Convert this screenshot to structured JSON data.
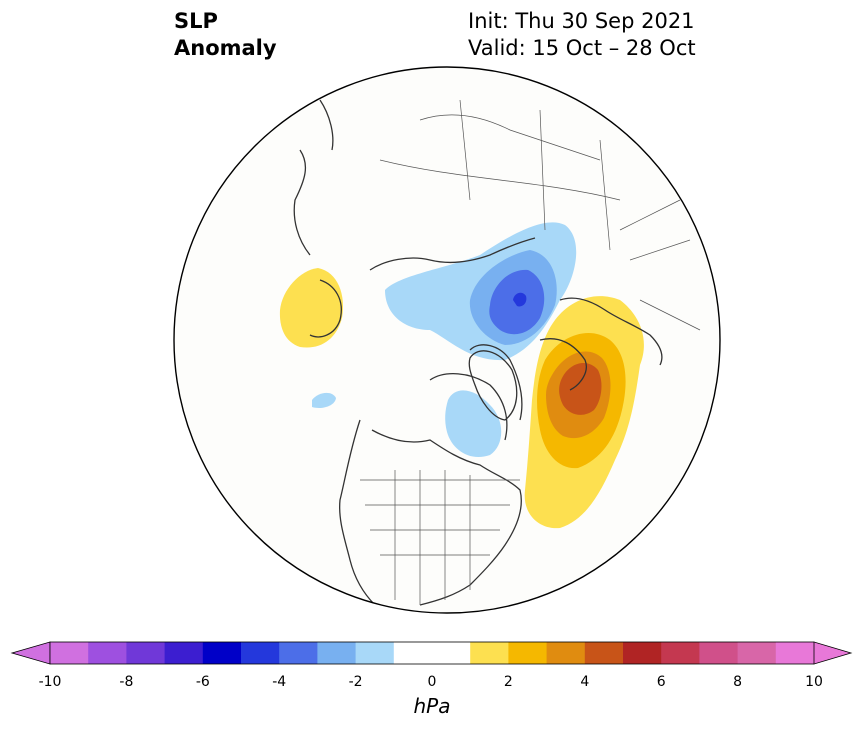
{
  "header": {
    "title_line1": "SLP",
    "title_line2": "Anomaly",
    "init_text": "Init: Thu 30 Sep 2021",
    "valid_text": "Valid: 15 Oct – 28 Oct"
  },
  "colorbar": {
    "units": "hPa",
    "ticks": [
      "-10",
      "-8",
      "-6",
      "-4",
      "-2",
      "0",
      "2",
      "4",
      "6",
      "8",
      "10"
    ],
    "colors": [
      "#d070e0",
      "#9e50e0",
      "#7038d8",
      "#3c1ed0",
      "#0000c8",
      "#2438dc",
      "#4c6ee8",
      "#78b0f0",
      "#a8d8f8",
      "#ffffff",
      "#ffffff",
      "#fde050",
      "#f5b800",
      "#e08c10",
      "#c85418",
      "#b02424",
      "#c43850",
      "#d0508a",
      "#d866a8",
      "#e878d8"
    ],
    "arrow_left_color": "#d070e0",
    "arrow_right_color": "#e878d8"
  },
  "map": {
    "projection": "north-polar-stereographic",
    "domain_outline_color": "#000000",
    "coastline_color": "#333333"
  }
}
